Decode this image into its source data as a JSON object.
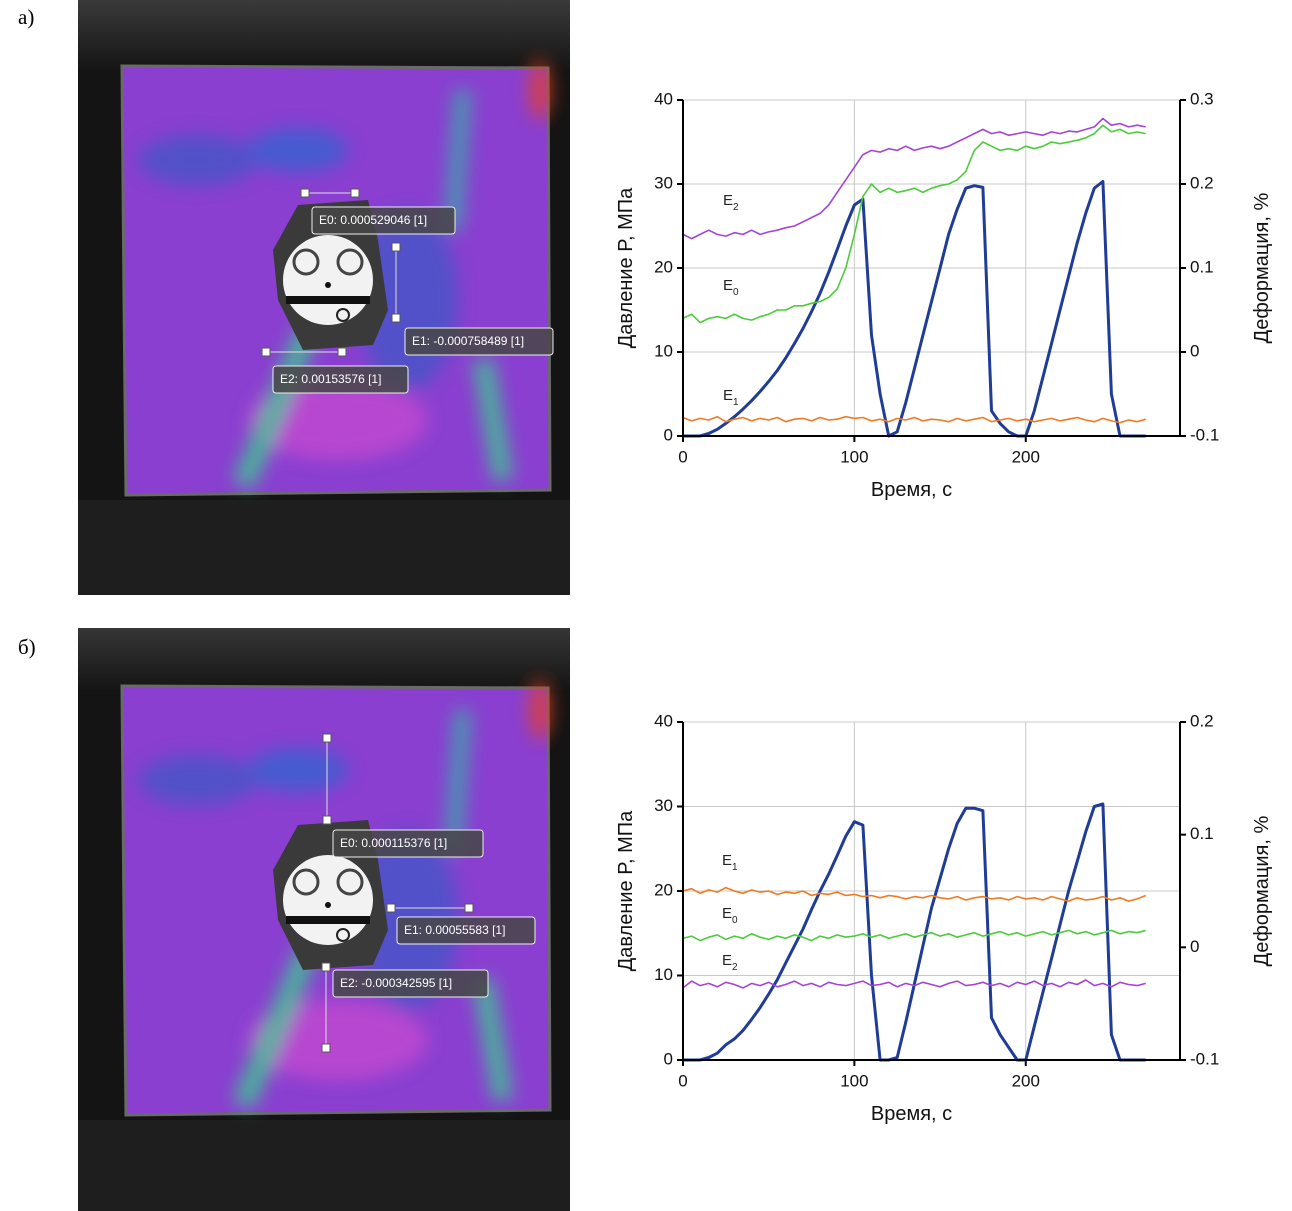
{
  "panels": [
    {
      "label": "а)",
      "annotations": [
        "E0: 0.000529046 [1]",
        "E1: -0.000758489 [1]",
        "E2: 0.00153576 [1]"
      ]
    },
    {
      "label": "б)",
      "annotations": [
        "E0: 0.000115376 [1]",
        "E1: 0.00055583 [1]",
        "E2: -0.000342595 [1]"
      ]
    }
  ],
  "chart_data": [
    {
      "type": "line",
      "xlabel": "Время, с",
      "ylabel": "Давление P, МПа",
      "y2label": "Деформация, %",
      "xlim": [
        0,
        290
      ],
      "xticks": [
        0,
        100,
        200
      ],
      "ylim": [
        0,
        40
      ],
      "yticks": [
        0,
        10,
        20,
        30,
        40
      ],
      "y2lim": [
        -0.1,
        0.3
      ],
      "y2ticks": [
        -0.1,
        0,
        0.1,
        0.2,
        0.3
      ],
      "grid": true,
      "x": [
        0,
        5,
        10,
        15,
        20,
        25,
        30,
        35,
        40,
        45,
        50,
        55,
        60,
        65,
        70,
        75,
        80,
        85,
        90,
        95,
        100,
        105,
        110,
        115,
        120,
        125,
        130,
        135,
        140,
        145,
        150,
        155,
        160,
        165,
        170,
        175,
        180,
        185,
        190,
        195,
        200,
        205,
        210,
        215,
        220,
        225,
        230,
        235,
        240,
        245,
        250,
        255,
        260,
        265,
        270
      ],
      "series": [
        {
          "color": "#1f3c96",
          "values": [
            0,
            0,
            0,
            0.3,
            0.8,
            1.5,
            2.3,
            3.2,
            4.2,
            5.3,
            6.5,
            7.8,
            9.3,
            11,
            12.8,
            14.8,
            17,
            19.5,
            22.2,
            25,
            27.5,
            28.2,
            12,
            5,
            0,
            0.5,
            4,
            8,
            12,
            16,
            20,
            24,
            27,
            29.5,
            29.8,
            29.6,
            3,
            1.5,
            0.5,
            0,
            0,
            3,
            7,
            11,
            15,
            19,
            23,
            26.5,
            29.5,
            30.3,
            5,
            0,
            0,
            0,
            0
          ]
        },
        {
          "name": "E0",
          "color": "#4ccc3a",
          "axis": "y2",
          "values": [
            0.04,
            0.045,
            0.035,
            0.04,
            0.042,
            0.04,
            0.045,
            0.04,
            0.038,
            0.042,
            0.045,
            0.05,
            0.05,
            0.055,
            0.055,
            0.058,
            0.06,
            0.065,
            0.075,
            0.1,
            0.14,
            0.185,
            0.2,
            0.19,
            0.195,
            0.19,
            0.192,
            0.195,
            0.19,
            0.195,
            0.198,
            0.2,
            0.205,
            0.215,
            0.24,
            0.25,
            0.245,
            0.24,
            0.242,
            0.24,
            0.245,
            0.242,
            0.245,
            0.25,
            0.248,
            0.25,
            0.252,
            0.255,
            0.26,
            0.27,
            0.262,
            0.265,
            0.26,
            0.262,
            0.26
          ]
        },
        {
          "name": "E1",
          "color": "#f07a22",
          "axis": "y2",
          "values": [
            -0.078,
            -0.082,
            -0.079,
            -0.081,
            -0.077,
            -0.083,
            -0.08,
            -0.078,
            -0.082,
            -0.079,
            -0.081,
            -0.078,
            -0.083,
            -0.08,
            -0.079,
            -0.082,
            -0.078,
            -0.081,
            -0.08,
            -0.077,
            -0.079,
            -0.078,
            -0.082,
            -0.08,
            -0.083,
            -0.079,
            -0.081,
            -0.078,
            -0.082,
            -0.08,
            -0.081,
            -0.083,
            -0.079,
            -0.082,
            -0.08,
            -0.078,
            -0.083,
            -0.081,
            -0.079,
            -0.082,
            -0.08,
            -0.083,
            -0.081,
            -0.079,
            -0.082,
            -0.08,
            -0.078,
            -0.081,
            -0.083,
            -0.079,
            -0.082,
            -0.084,
            -0.081,
            -0.083,
            -0.08
          ]
        },
        {
          "name": "E2",
          "color": "#a444d6",
          "axis": "y2",
          "values": [
            0.14,
            0.135,
            0.14,
            0.145,
            0.14,
            0.138,
            0.142,
            0.14,
            0.145,
            0.14,
            0.143,
            0.145,
            0.148,
            0.15,
            0.155,
            0.16,
            0.165,
            0.175,
            0.19,
            0.205,
            0.22,
            0.235,
            0.24,
            0.238,
            0.242,
            0.24,
            0.245,
            0.24,
            0.243,
            0.245,
            0.242,
            0.245,
            0.25,
            0.255,
            0.26,
            0.265,
            0.26,
            0.262,
            0.258,
            0.26,
            0.262,
            0.26,
            0.258,
            0.262,
            0.26,
            0.263,
            0.262,
            0.265,
            0.268,
            0.278,
            0.27,
            0.272,
            0.268,
            0.27,
            0.268
          ]
        }
      ]
    },
    {
      "type": "line",
      "xlabel": "Время, с",
      "ylabel": "Давление P, МПа",
      "y2label": "Деформация, %",
      "xlim": [
        0,
        290
      ],
      "xticks": [
        0,
        100,
        200
      ],
      "ylim": [
        0,
        40
      ],
      "yticks": [
        0,
        10,
        20,
        30,
        40
      ],
      "y2lim": [
        -0.1,
        0.2
      ],
      "y2ticks": [
        -0.1,
        0,
        0.1,
        0.2
      ],
      "grid": true,
      "x": [
        0,
        5,
        10,
        15,
        20,
        25,
        30,
        35,
        40,
        45,
        50,
        55,
        60,
        65,
        70,
        75,
        80,
        85,
        90,
        95,
        100,
        105,
        110,
        115,
        120,
        125,
        130,
        135,
        140,
        145,
        150,
        155,
        160,
        165,
        170,
        175,
        180,
        185,
        190,
        195,
        200,
        205,
        210,
        215,
        220,
        225,
        230,
        235,
        240,
        245,
        250,
        255,
        260,
        265,
        270
      ],
      "series": [
        {
          "color": "#1f3c96",
          "values": [
            0,
            0,
            0,
            0.3,
            0.8,
            1.8,
            2.5,
            3.5,
            4.8,
            6.2,
            7.8,
            9.5,
            11.5,
            13.5,
            15.5,
            17.8,
            20,
            22,
            24.2,
            26.5,
            28.2,
            27.8,
            10,
            0,
            0,
            0.3,
            4.5,
            9,
            13.5,
            18,
            21.5,
            25,
            28,
            29.8,
            29.8,
            29.5,
            5,
            3,
            1.5,
            0,
            0,
            4,
            8,
            12,
            16,
            20,
            23.5,
            27,
            30,
            30.3,
            3,
            0,
            0,
            0,
            0
          ]
        },
        {
          "name": "E0",
          "color": "#4ccc3a",
          "axis": "y2",
          "values": [
            0.008,
            0.01,
            0.006,
            0.009,
            0.011,
            0.007,
            0.01,
            0.008,
            0.012,
            0.009,
            0.007,
            0.01,
            0.008,
            0.011,
            0.009,
            0.006,
            0.01,
            0.008,
            0.011,
            0.009,
            0.01,
            0.012,
            0.009,
            0.011,
            0.008,
            0.01,
            0.012,
            0.009,
            0.011,
            0.013,
            0.01,
            0.012,
            0.009,
            0.011,
            0.013,
            0.01,
            0.012,
            0.014,
            0.011,
            0.013,
            0.01,
            0.012,
            0.014,
            0.011,
            0.013,
            0.015,
            0.012,
            0.014,
            0.011,
            0.013,
            0.015,
            0.012,
            0.014,
            0.013,
            0.015
          ]
        },
        {
          "name": "E1",
          "color": "#f07a22",
          "axis": "y2",
          "values": [
            0.05,
            0.052,
            0.048,
            0.051,
            0.049,
            0.053,
            0.05,
            0.048,
            0.051,
            0.049,
            0.05,
            0.047,
            0.049,
            0.048,
            0.05,
            0.046,
            0.048,
            0.047,
            0.049,
            0.046,
            0.047,
            0.045,
            0.046,
            0.044,
            0.046,
            0.045,
            0.043,
            0.045,
            0.044,
            0.046,
            0.044,
            0.043,
            0.045,
            0.042,
            0.044,
            0.045,
            0.043,
            0.044,
            0.042,
            0.045,
            0.043,
            0.044,
            0.042,
            0.045,
            0.043,
            0.041,
            0.044,
            0.042,
            0.043,
            0.045,
            0.042,
            0.044,
            0.041,
            0.043,
            0.046
          ]
        },
        {
          "name": "E2",
          "color": "#a444d6",
          "axis": "y2",
          "values": [
            -0.036,
            -0.03,
            -0.034,
            -0.032,
            -0.035,
            -0.031,
            -0.033,
            -0.036,
            -0.032,
            -0.034,
            -0.031,
            -0.035,
            -0.033,
            -0.03,
            -0.034,
            -0.032,
            -0.035,
            -0.031,
            -0.033,
            -0.034,
            -0.032,
            -0.03,
            -0.034,
            -0.033,
            -0.031,
            -0.035,
            -0.032,
            -0.034,
            -0.031,
            -0.033,
            -0.035,
            -0.032,
            -0.03,
            -0.034,
            -0.033,
            -0.031,
            -0.034,
            -0.032,
            -0.035,
            -0.031,
            -0.033,
            -0.03,
            -0.034,
            -0.032,
            -0.035,
            -0.031,
            -0.033,
            -0.029,
            -0.034,
            -0.032,
            -0.035,
            -0.031,
            -0.033,
            -0.034,
            -0.032
          ]
        }
      ]
    }
  ]
}
